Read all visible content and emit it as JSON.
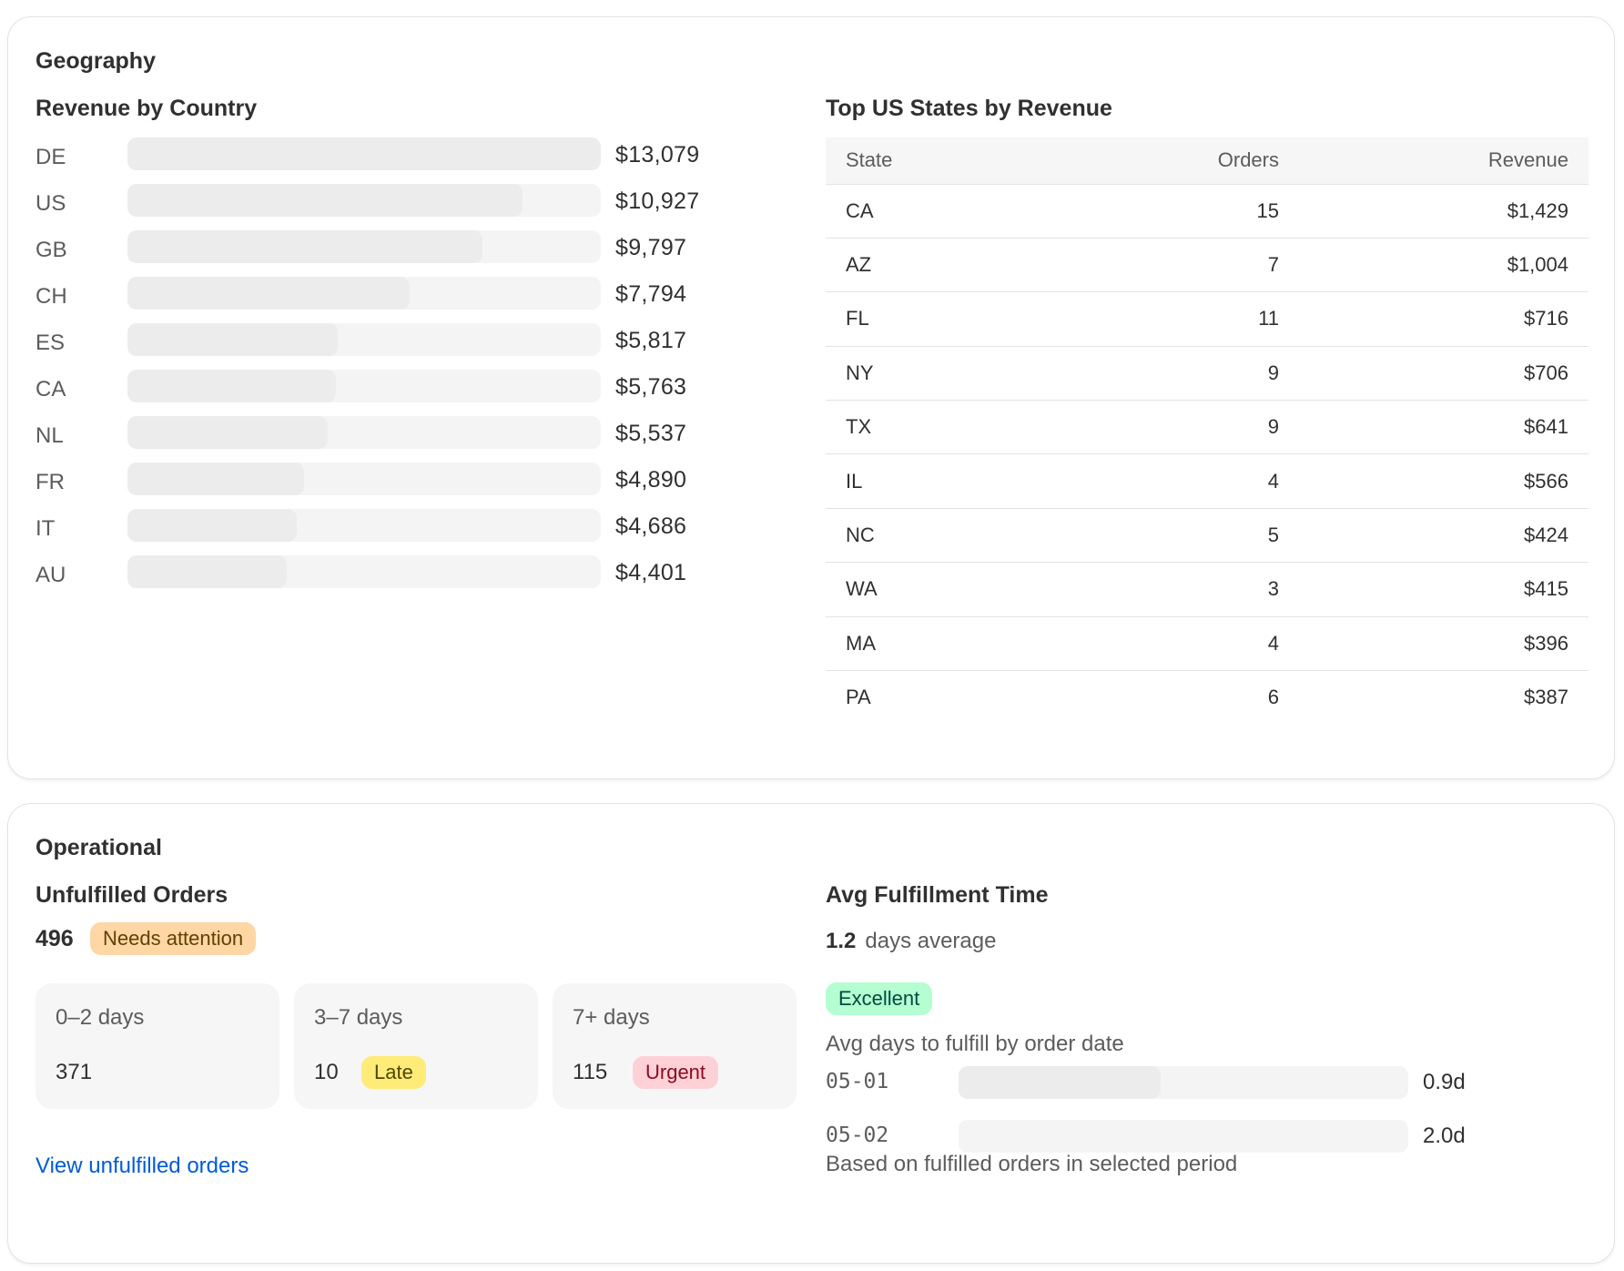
{
  "geography": {
    "title": "Geography",
    "revenue_by_country": {
      "title": "Revenue by Country",
      "items": [
        {
          "code": "DE",
          "value": "$13,079",
          "amount": 13079
        },
        {
          "code": "US",
          "value": "$10,927",
          "amount": 10927
        },
        {
          "code": "GB",
          "value": "$9,797",
          "amount": 9797
        },
        {
          "code": "CH",
          "value": "$7,794",
          "amount": 7794
        },
        {
          "code": "ES",
          "value": "$5,817",
          "amount": 5817
        },
        {
          "code": "CA",
          "value": "$5,763",
          "amount": 5763
        },
        {
          "code": "NL",
          "value": "$5,537",
          "amount": 5537
        },
        {
          "code": "FR",
          "value": "$4,890",
          "amount": 4890
        },
        {
          "code": "IT",
          "value": "$4,686",
          "amount": 4686
        },
        {
          "code": "AU",
          "value": "$4,401",
          "amount": 4401
        }
      ]
    },
    "top_states": {
      "title": "Top US States by Revenue",
      "headers": {
        "state": "State",
        "orders": "Orders",
        "revenue": "Revenue"
      },
      "rows": [
        {
          "state": "CA",
          "orders": "15",
          "revenue": "$1,429"
        },
        {
          "state": "AZ",
          "orders": "7",
          "revenue": "$1,004"
        },
        {
          "state": "FL",
          "orders": "11",
          "revenue": "$716"
        },
        {
          "state": "NY",
          "orders": "9",
          "revenue": "$706"
        },
        {
          "state": "TX",
          "orders": "9",
          "revenue": "$641"
        },
        {
          "state": "IL",
          "orders": "4",
          "revenue": "$566"
        },
        {
          "state": "NC",
          "orders": "5",
          "revenue": "$424"
        },
        {
          "state": "WA",
          "orders": "3",
          "revenue": "$415"
        },
        {
          "state": "MA",
          "orders": "4",
          "revenue": "$396"
        },
        {
          "state": "PA",
          "orders": "6",
          "revenue": "$387"
        }
      ]
    }
  },
  "operational": {
    "title": "Operational",
    "unfulfilled": {
      "title": "Unfulfilled Orders",
      "count": "496",
      "badge": "Needs attention",
      "buckets": [
        {
          "label": "0–2 days",
          "value": "371",
          "badge": ""
        },
        {
          "label": "3–7 days",
          "value": "10",
          "badge": "Late"
        },
        {
          "label": "7+ days",
          "value": "115",
          "badge": "Urgent"
        }
      ],
      "link": "View unfulfilled orders"
    },
    "avg_fulfillment": {
      "title": "Avg Fulfillment Time",
      "value": "1.2",
      "unit_label": "days average",
      "badge": "Excellent",
      "by_date_label": "Avg days to fulfill by order date",
      "rows": [
        {
          "date": "05-01",
          "value": "0.9d",
          "days": 0.9
        },
        {
          "date": "05-02",
          "value": "2.0d",
          "days": 2.0
        }
      ],
      "footnote": "Based on fulfilled orders in selected period"
    }
  },
  "colors": {
    "link": "#005bd3",
    "badge_attention": "#ffd6a4",
    "badge_late": "#ffeb78",
    "badge_urgent": "#fed1d7",
    "badge_excellent": "#b4fed2"
  }
}
